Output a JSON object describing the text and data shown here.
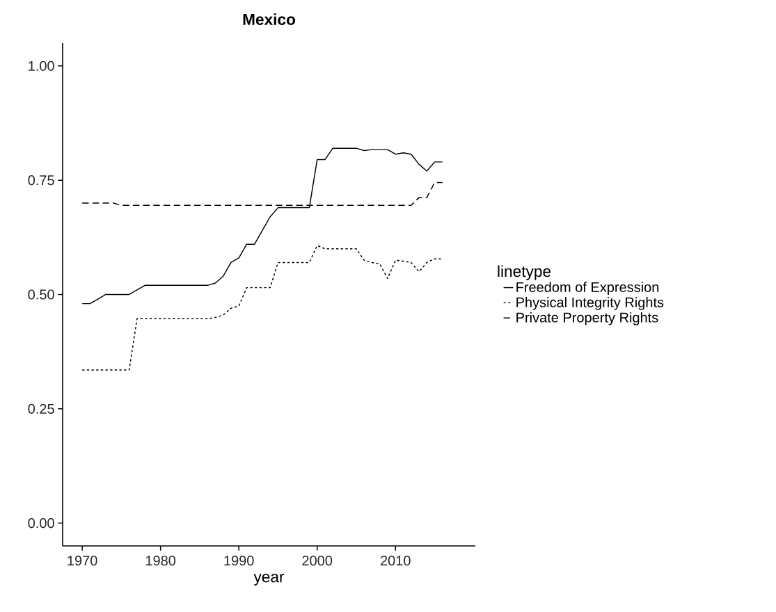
{
  "chart_data": {
    "type": "line",
    "title": "Mexico",
    "xlabel": "year",
    "legend_title": "linetype",
    "legend": "right",
    "grid": false,
    "x": [
      1970,
      1971,
      1972,
      1973,
      1974,
      1975,
      1976,
      1977,
      1978,
      1979,
      1980,
      1981,
      1982,
      1983,
      1984,
      1985,
      1986,
      1987,
      1988,
      1989,
      1990,
      1991,
      1992,
      1993,
      1994,
      1995,
      1996,
      1997,
      1998,
      1999,
      2000,
      2001,
      2002,
      2003,
      2004,
      2005,
      2006,
      2007,
      2008,
      2009,
      2010,
      2011,
      2012,
      2013,
      2014,
      2015,
      2016
    ],
    "series": [
      {
        "name": "Freedom of Expression",
        "color": "#000000",
        "line_style": "solid",
        "values": [
          0.48,
          0.48,
          0.49,
          0.5,
          0.5,
          0.5,
          0.5,
          0.51,
          0.52,
          0.52,
          0.52,
          0.52,
          0.52,
          0.52,
          0.52,
          0.52,
          0.52,
          0.525,
          0.54,
          0.57,
          0.58,
          0.61,
          0.61,
          0.64,
          0.67,
          0.69,
          0.69,
          0.69,
          0.69,
          0.69,
          0.795,
          0.795,
          0.82,
          0.82,
          0.82,
          0.82,
          0.815,
          0.817,
          0.817,
          0.817,
          0.807,
          0.81,
          0.807,
          0.785,
          0.77,
          0.79,
          0.79
        ]
      },
      {
        "name": "Physical Integrity Rights",
        "color": "#000000",
        "line_style": "dotted",
        "values": [
          0.335,
          0.335,
          0.335,
          0.335,
          0.335,
          0.335,
          0.335,
          0.447,
          0.447,
          0.447,
          0.447,
          0.447,
          0.447,
          0.447,
          0.447,
          0.447,
          0.447,
          0.45,
          0.455,
          0.47,
          0.475,
          0.515,
          0.515,
          0.515,
          0.515,
          0.57,
          0.57,
          0.57,
          0.57,
          0.57,
          0.607,
          0.6,
          0.6,
          0.6,
          0.6,
          0.6,
          0.575,
          0.57,
          0.567,
          0.535,
          0.575,
          0.573,
          0.57,
          0.55,
          0.57,
          0.578,
          0.578
        ]
      },
      {
        "name": "Private Property Rights",
        "color": "#000000",
        "line_style": "dashed",
        "values": [
          0.7,
          0.7,
          0.7,
          0.7,
          0.7,
          0.695,
          0.695,
          0.695,
          0.695,
          0.695,
          0.695,
          0.695,
          0.695,
          0.695,
          0.695,
          0.695,
          0.695,
          0.695,
          0.695,
          0.695,
          0.695,
          0.695,
          0.695,
          0.695,
          0.695,
          0.695,
          0.695,
          0.695,
          0.695,
          0.695,
          0.695,
          0.695,
          0.695,
          0.695,
          0.695,
          0.695,
          0.695,
          0.695,
          0.695,
          0.695,
          0.695,
          0.695,
          0.695,
          0.712,
          0.712,
          0.745,
          0.745
        ]
      }
    ],
    "xlim": [
      1967.5,
      2020.2
    ],
    "ylim": [
      -0.05,
      1.05
    ],
    "xticks": [
      1970,
      1980,
      1990,
      2000,
      2010
    ],
    "yticks": [
      {
        "value": 0,
        "label": "0.00"
      },
      {
        "value": 0.25,
        "label": "0.25"
      },
      {
        "value": 0.5,
        "label": "0.50"
      },
      {
        "value": 0.75,
        "label": "0.75"
      },
      {
        "value": 1,
        "label": "1.00"
      }
    ]
  }
}
